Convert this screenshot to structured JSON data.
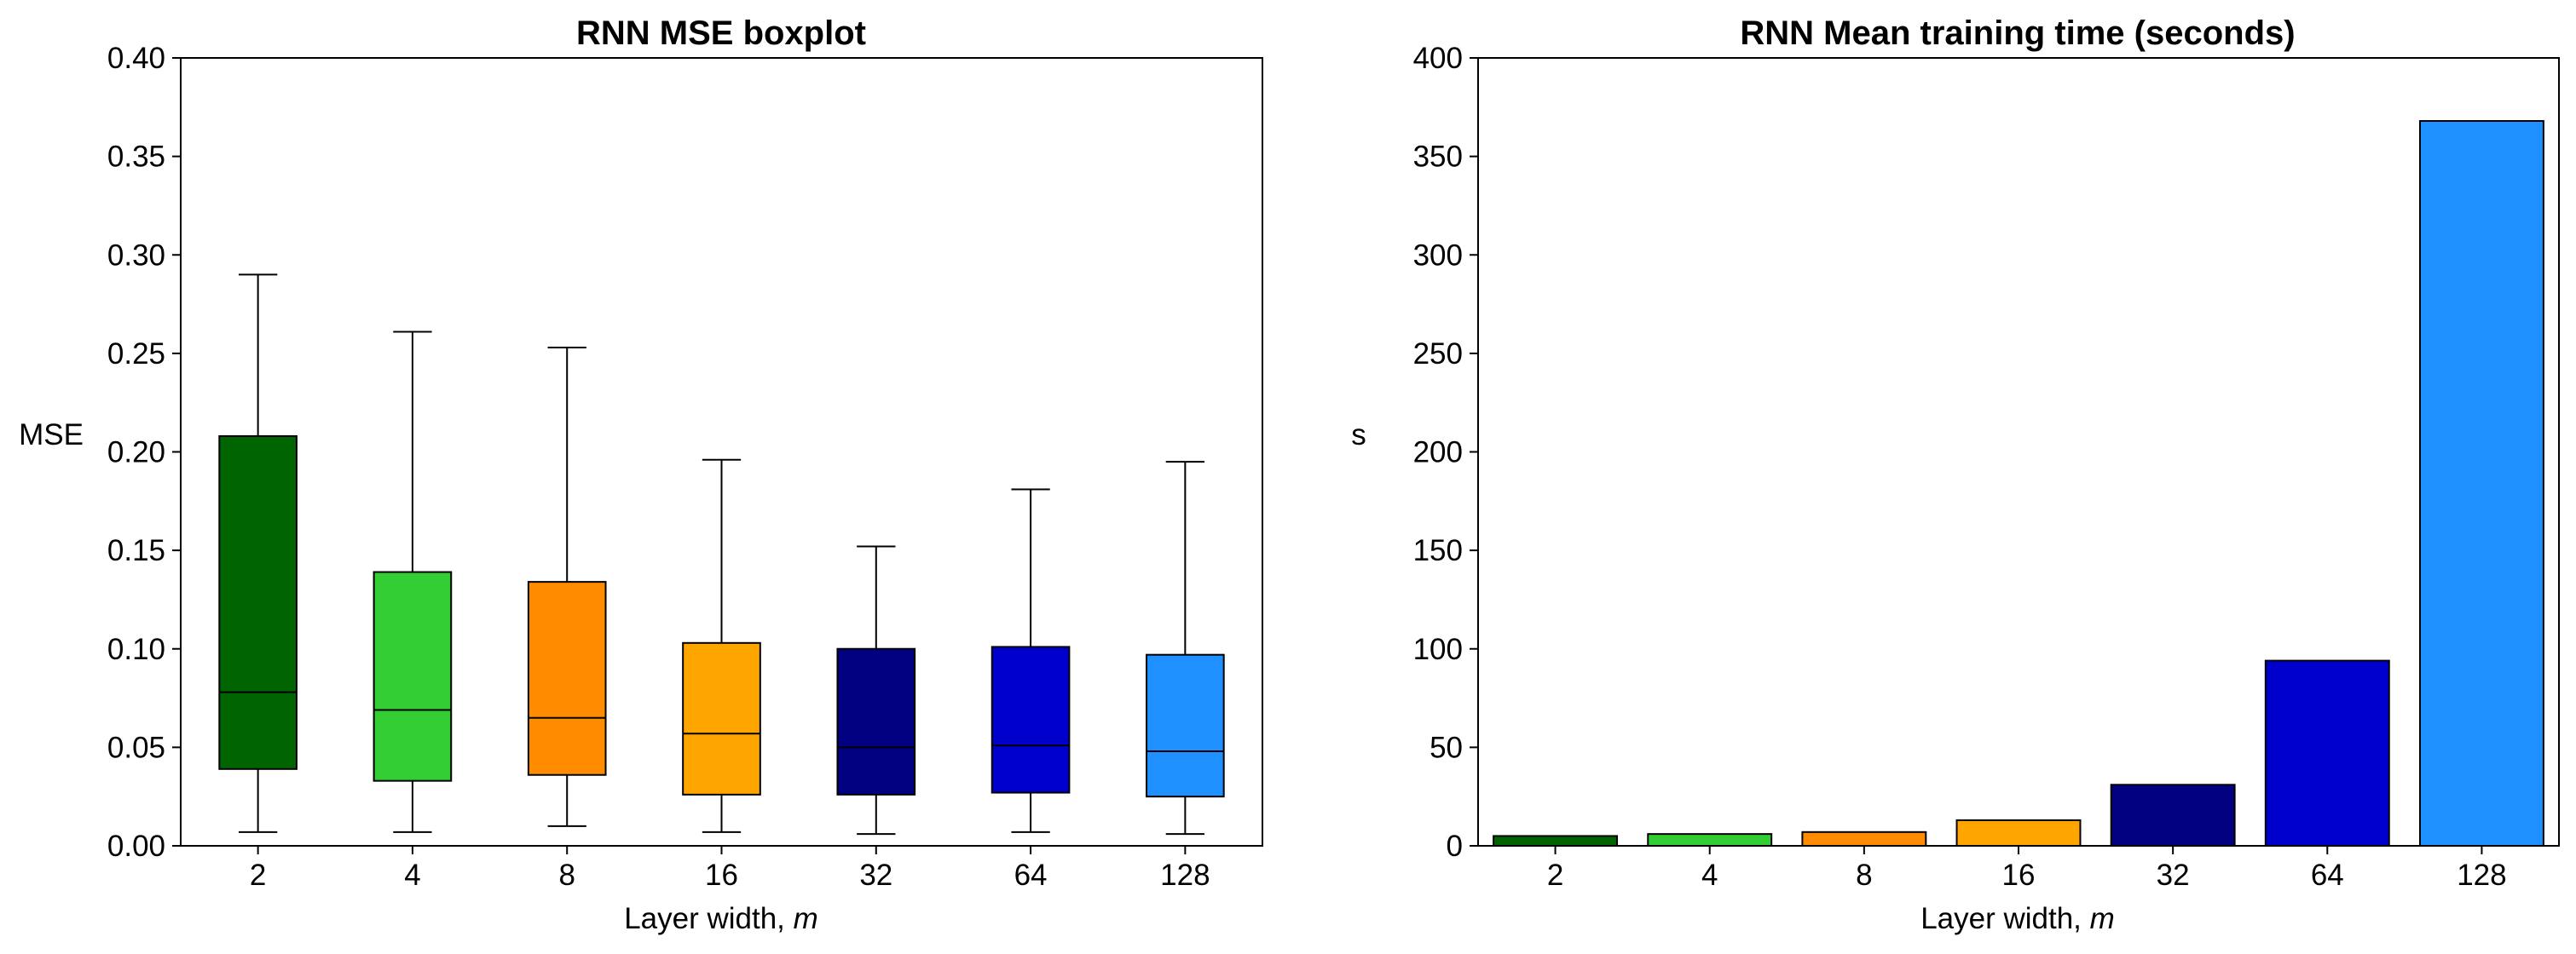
{
  "chart_data": [
    {
      "type": "box",
      "title": "RNN MSE boxplot",
      "xlabel": "Layer width, ",
      "xlabel_var": "m",
      "ylabel": "MSE",
      "ylim": [
        0,
        0.4
      ],
      "yticks": [
        "0.00",
        "0.05",
        "0.10",
        "0.15",
        "0.20",
        "0.25",
        "0.30",
        "0.35",
        "0.40"
      ],
      "categories": [
        "2",
        "4",
        "8",
        "16",
        "32",
        "64",
        "128"
      ],
      "colors": [
        "#006400",
        "#32CD32",
        "#FF8C00",
        "#FFA500",
        "#000080",
        "#0000CD",
        "#1E90FF"
      ],
      "boxes": [
        {
          "whislo": 0.007,
          "q1": 0.039,
          "med": 0.078,
          "q3": 0.208,
          "whishi": 0.29
        },
        {
          "whislo": 0.007,
          "q1": 0.033,
          "med": 0.069,
          "q3": 0.139,
          "whishi": 0.261
        },
        {
          "whislo": 0.01,
          "q1": 0.036,
          "med": 0.065,
          "q3": 0.134,
          "whishi": 0.253
        },
        {
          "whislo": 0.007,
          "q1": 0.026,
          "med": 0.057,
          "q3": 0.103,
          "whishi": 0.196
        },
        {
          "whislo": 0.006,
          "q1": 0.026,
          "med": 0.05,
          "q3": 0.1,
          "whishi": 0.152
        },
        {
          "whislo": 0.007,
          "q1": 0.027,
          "med": 0.051,
          "q3": 0.101,
          "whishi": 0.181
        },
        {
          "whislo": 0.006,
          "q1": 0.025,
          "med": 0.048,
          "q3": 0.097,
          "whishi": 0.195
        }
      ]
    },
    {
      "type": "bar",
      "title": "RNN Mean training time (seconds)",
      "xlabel": "Layer width, ",
      "xlabel_var": "m",
      "ylabel": "s",
      "ylim": [
        0,
        400
      ],
      "yticks": [
        "0",
        "50",
        "100",
        "150",
        "200",
        "250",
        "300",
        "350",
        "400"
      ],
      "categories": [
        "2",
        "4",
        "8",
        "16",
        "32",
        "64",
        "128"
      ],
      "colors": [
        "#006400",
        "#32CD32",
        "#FF8C00",
        "#FFA500",
        "#000080",
        "#0000CD",
        "#1E90FF"
      ],
      "values": [
        5,
        6,
        7,
        13,
        31,
        94,
        368
      ]
    }
  ]
}
